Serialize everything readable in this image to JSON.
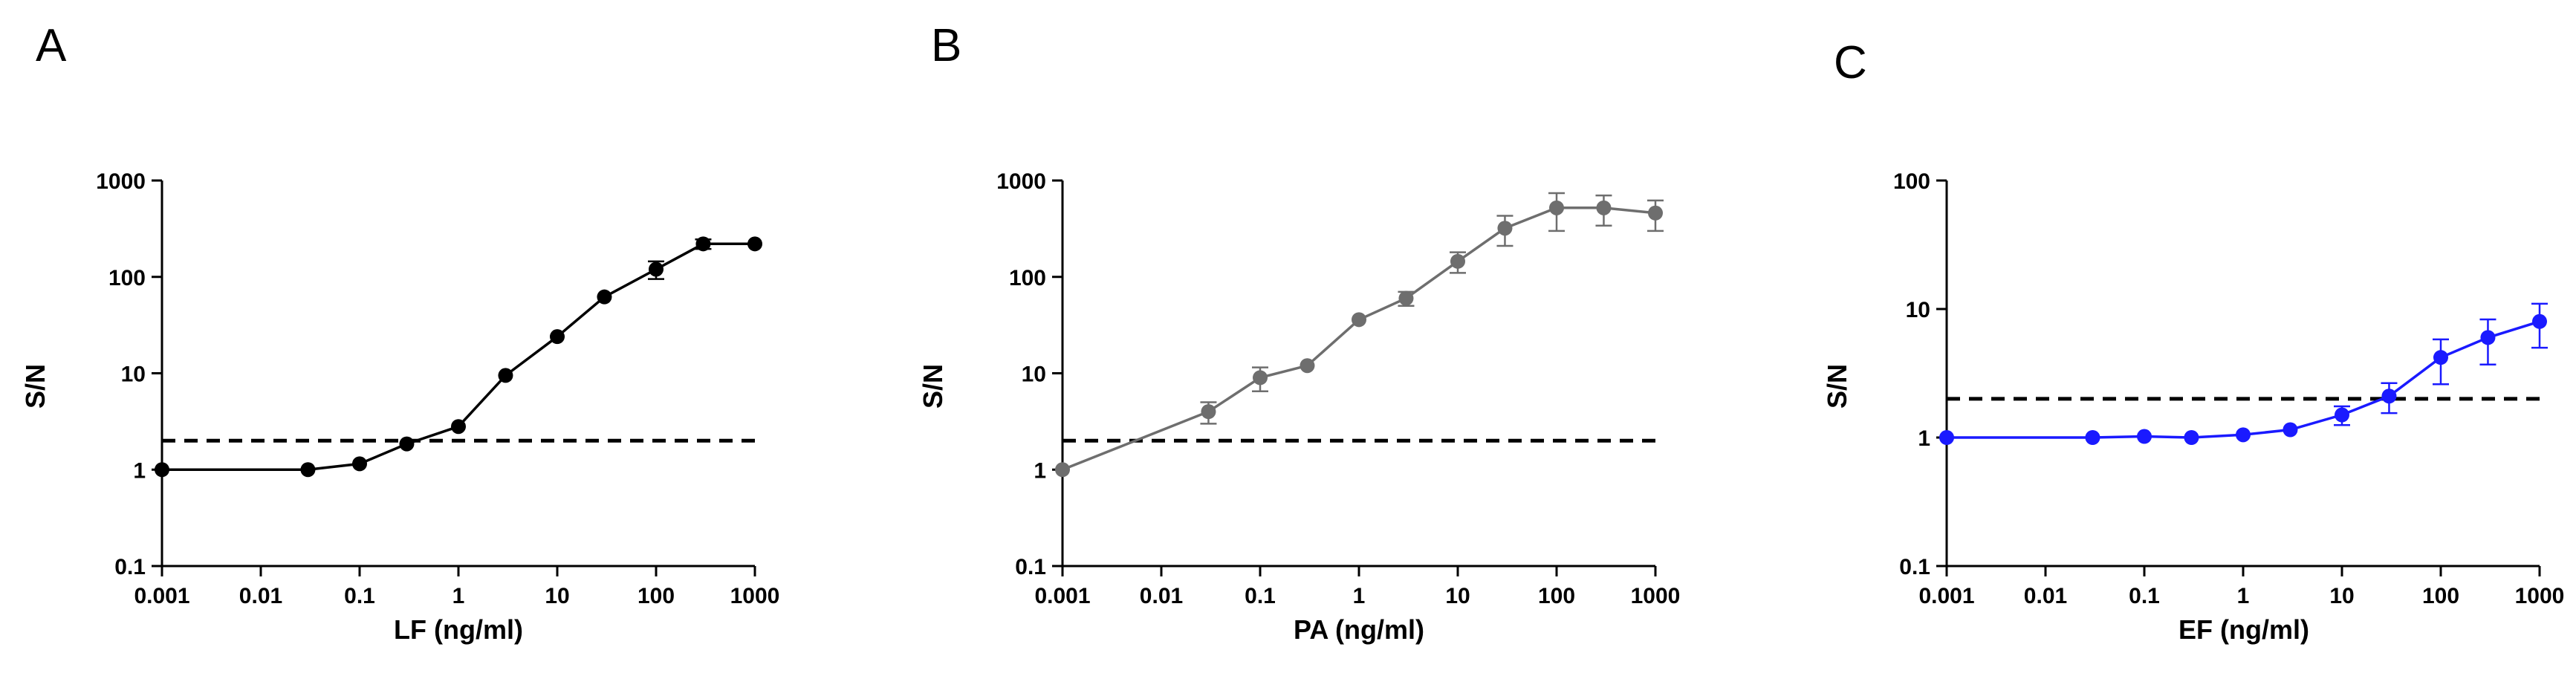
{
  "chart_data": [
    {
      "type": "line",
      "panel_letter": "A",
      "xlabel": "LF (ng/ml)",
      "ylabel": "S/N",
      "xscale": "log",
      "yscale": "log",
      "xlim": [
        0.001,
        1000
      ],
      "ylim": [
        0.1,
        1000
      ],
      "xticks": [
        "0.001",
        "0.01",
        "0.1",
        "1",
        "10",
        "100",
        "1000"
      ],
      "yticks": [
        "0.1",
        "1",
        "10",
        "100",
        "1000"
      ],
      "threshold": 2,
      "color": "#000000",
      "series": [
        {
          "name": "LF",
          "x": [
            0.001,
            0.03,
            0.1,
            0.3,
            1,
            3,
            10,
            30,
            100,
            300,
            1000
          ],
          "y": [
            1.0,
            1.0,
            1.15,
            1.85,
            2.8,
            9.5,
            24,
            62,
            120,
            220,
            220
          ],
          "err": [
            0,
            0,
            0,
            0,
            0,
            0,
            0,
            0,
            25,
            25,
            0
          ]
        }
      ]
    },
    {
      "type": "line",
      "panel_letter": "B",
      "xlabel": "PA (ng/ml)",
      "ylabel": "S/N",
      "xscale": "log",
      "yscale": "log",
      "xlim": [
        0.001,
        1000
      ],
      "ylim": [
        0.1,
        1000
      ],
      "xticks": [
        "0.001",
        "0.01",
        "0.1",
        "1",
        "10",
        "100",
        "1000"
      ],
      "yticks": [
        "0.1",
        "1",
        "10",
        "100",
        "1000"
      ],
      "threshold": 2,
      "color": "#6e6e6e",
      "series": [
        {
          "name": "PA",
          "x": [
            0.001,
            0.03,
            0.1,
            0.3,
            1,
            3,
            10,
            30,
            100,
            300,
            1000
          ],
          "y": [
            1.0,
            4.0,
            9.0,
            12,
            36,
            60,
            145,
            320,
            520,
            520,
            460
          ],
          "err": [
            0,
            1.0,
            2.5,
            0,
            0,
            10,
            35,
            110,
            220,
            180,
            160
          ]
        }
      ]
    },
    {
      "type": "line",
      "panel_letter": "C",
      "xlabel": "EF (ng/ml)",
      "ylabel": "S/N",
      "xscale": "log",
      "yscale": "log",
      "xlim": [
        0.001,
        1000
      ],
      "ylim": [
        0.1,
        100
      ],
      "xticks": [
        "0.001",
        "0.01",
        "0.1",
        "1",
        "10",
        "100",
        "1000"
      ],
      "yticks": [
        "0.1",
        "1",
        "10",
        "100"
      ],
      "threshold": 2,
      "color": "#1a1aff",
      "series": [
        {
          "name": "EF",
          "x": [
            0.001,
            0.03,
            0.1,
            0.3,
            1,
            3,
            10,
            30,
            100,
            300,
            1000
          ],
          "y": [
            1.0,
            1.0,
            1.02,
            1.0,
            1.05,
            1.15,
            1.5,
            2.1,
            4.2,
            6.0,
            8.0
          ],
          "err": [
            0,
            0,
            0,
            0,
            0,
            0,
            0.25,
            0.55,
            1.6,
            2.3,
            3.0
          ]
        }
      ]
    }
  ]
}
